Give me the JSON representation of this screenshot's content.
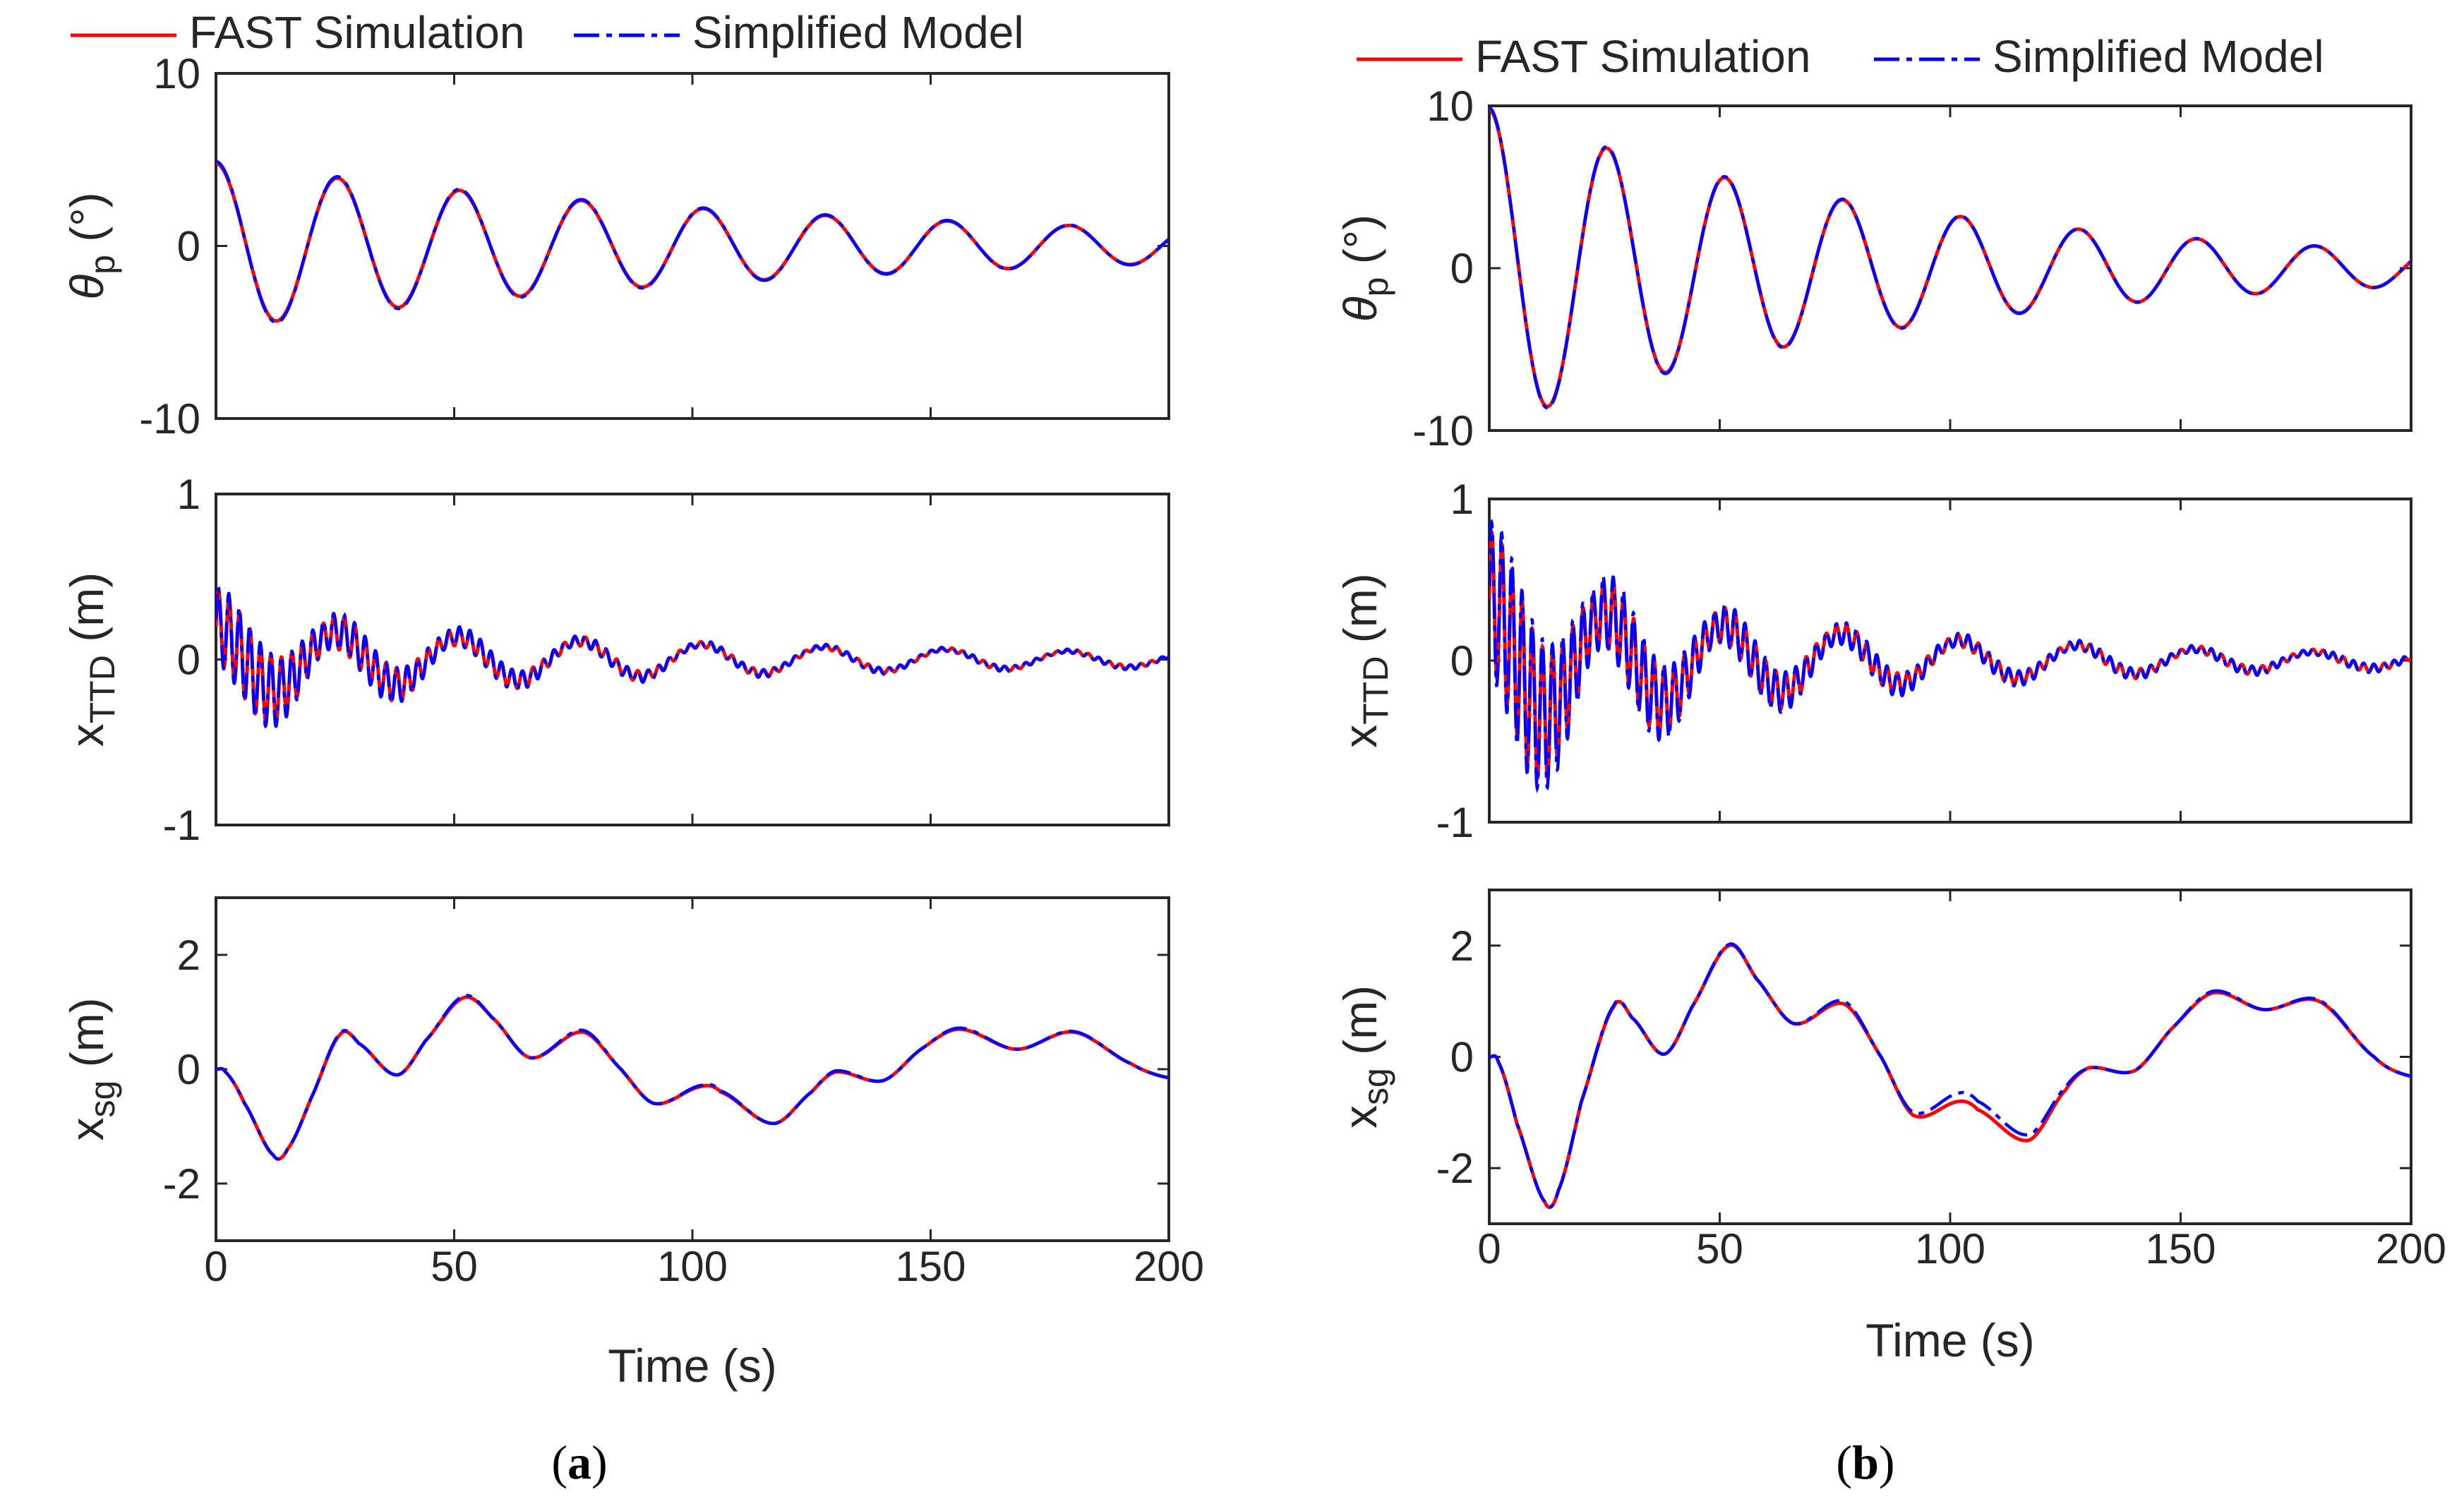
{
  "chart_data": [
    {
      "panel": "(a)",
      "type": "line",
      "legend": [
        "FAST Simulation",
        "Simplified Model"
      ],
      "legend_position": "top",
      "xlabel": "Time (s)",
      "xlim": [
        0,
        200
      ],
      "xticks": [
        "0",
        "50",
        "100",
        "150",
        "200"
      ],
      "subplots": [
        {
          "ylabel": "θ",
          "ylabel_sub": "p",
          "ylabel_unit": " (°)",
          "ylim": [
            -10,
            10
          ],
          "yticks": [
            "-10",
            "0",
            "10"
          ],
          "series": [
            {
              "name": "FAST Simulation",
              "color": "#ff0000",
              "model": {
                "kind": "decay",
                "a0": 4.8,
                "damp": 0.0078,
                "period": 25.6,
                "phase": 1.571,
                "pitch_amp": 0.0
              }
            },
            {
              "name": "Simplified Model",
              "color": "#0000ff",
              "model": {
                "kind": "decay",
                "a0": 4.9,
                "damp": 0.0078,
                "period": 25.6,
                "phase": 1.571,
                "pitch_amp": 0.0
              }
            }
          ]
        },
        {
          "ylabel": "x",
          "ylabel_sub": "TTD",
          "ylabel_unit": " (m)",
          "ylim": [
            -1,
            1
          ],
          "yticks": [
            "-1",
            "0",
            "1"
          ],
          "series": [
            {
              "name": "FAST Simulation",
              "color": "#ff0000",
              "model": {
                "kind": "tower",
                "a0": 0.2,
                "damp": 0.0078,
                "period": 25.6,
                "hf_amp": 0.28,
                "hf_damp": 0.03,
                "hf_period": 2.2,
                "hf_floor": 0.012
              }
            },
            {
              "name": "Simplified Model",
              "color": "#0000ff",
              "model": {
                "kind": "tower",
                "a0": 0.21,
                "damp": 0.0078,
                "period": 25.6,
                "hf_amp": 0.3,
                "hf_damp": 0.03,
                "hf_period": 2.2,
                "hf_floor": 0.014
              }
            }
          ]
        },
        {
          "ylabel": "x",
          "ylabel_sub": "sg",
          "ylabel_unit": " (m)",
          "ylim": [
            -3,
            3
          ],
          "yticks": [
            "-2",
            "0",
            "2"
          ],
          "series": [
            {
              "name": "FAST Simulation",
              "color": "#ff0000",
              "model": {
                "kind": "knots",
                "t": [
                  0,
                  2,
                  6,
                  12,
                  15,
                  20,
                  26,
                  30,
                  38,
                  44,
                  52,
                  58,
                  66,
                  77,
                  85,
                  92,
                  102,
                  106,
                  117,
                  125,
                  130,
                  140,
                  148,
                  156,
                  168,
                  180,
                  192,
                  200
                ],
                "v": [
                  0,
                  -0.05,
                  -0.6,
                  -1.5,
                  -1.4,
                  -0.5,
                  0.6,
                  0.45,
                  -0.1,
                  0.5,
                  1.25,
                  0.9,
                  0.2,
                  0.65,
                  0.0,
                  -0.6,
                  -0.3,
                  -0.4,
                  -0.95,
                  -0.4,
                  -0.05,
                  -0.2,
                  0.35,
                  0.7,
                  0.35,
                  0.65,
                  0.1,
                  -0.15
                ]
              }
            },
            {
              "name": "Simplified Model",
              "color": "#0000ff",
              "model": {
                "kind": "knots",
                "t": [
                  0,
                  2,
                  6,
                  12,
                  15,
                  20,
                  26,
                  30,
                  38,
                  44,
                  52,
                  58,
                  66,
                  77,
                  85,
                  92,
                  102,
                  106,
                  117,
                  125,
                  130,
                  140,
                  148,
                  156,
                  168,
                  180,
                  192,
                  200
                ],
                "v": [
                  0,
                  -0.05,
                  -0.6,
                  -1.5,
                  -1.4,
                  -0.5,
                  0.62,
                  0.45,
                  -0.1,
                  0.5,
                  1.28,
                  0.9,
                  0.2,
                  0.68,
                  0.0,
                  -0.6,
                  -0.28,
                  -0.38,
                  -0.95,
                  -0.4,
                  -0.03,
                  -0.2,
                  0.35,
                  0.72,
                  0.35,
                  0.66,
                  0.1,
                  -0.15
                ]
              }
            }
          ]
        }
      ]
    },
    {
      "panel": "(b)",
      "type": "line",
      "legend": [
        "FAST Simulation",
        "Simplified Model"
      ],
      "legend_position": "top",
      "xlabel": "Time (s)",
      "xlim": [
        0,
        200
      ],
      "xticks": [
        "0",
        "50",
        "100",
        "150",
        "200"
      ],
      "subplots": [
        {
          "ylabel": "θ",
          "ylabel_sub": "p",
          "ylabel_unit": " (°)",
          "ylim": [
            -10,
            10
          ],
          "yticks": [
            "-10",
            "0",
            "10"
          ],
          "series": [
            {
              "name": "FAST Simulation",
              "color": "#ff0000",
              "model": {
                "kind": "decay",
                "a0": 9.8,
                "damp": 0.011,
                "period": 25.6,
                "phase": 1.571,
                "pitch_amp": 0.0
              }
            },
            {
              "name": "Simplified Model",
              "color": "#0000ff",
              "model": {
                "kind": "decay",
                "a0": 9.9,
                "damp": 0.011,
                "period": 25.6,
                "phase": 1.571,
                "pitch_amp": 0.0
              }
            }
          ]
        },
        {
          "ylabel": "x",
          "ylabel_sub": "TTD",
          "ylabel_unit": " (m)",
          "ylim": [
            -1,
            1
          ],
          "yticks": [
            "-1",
            "0",
            "1"
          ],
          "series": [
            {
              "name": "FAST Simulation",
              "color": "#ff0000",
              "model": {
                "kind": "tower",
                "a0": 0.38,
                "damp": 0.011,
                "period": 25.6,
                "hf_amp": 0.55,
                "hf_damp": 0.028,
                "hf_period": 2.2,
                "hf_floor": 0.02
              }
            },
            {
              "name": "Simplified Model",
              "color": "#0000ff",
              "model": {
                "kind": "tower",
                "a0": 0.39,
                "damp": 0.011,
                "period": 25.6,
                "hf_amp": 0.62,
                "hf_damp": 0.028,
                "hf_period": 2.2,
                "hf_floor": 0.024
              }
            }
          ]
        },
        {
          "ylabel": "x",
          "ylabel_sub": "sg",
          "ylabel_unit": " (m)",
          "ylim": [
            -3,
            3
          ],
          "yticks": [
            "-2",
            "0",
            "2"
          ],
          "series": [
            {
              "name": "FAST Simulation",
              "color": "#ff0000",
              "model": {
                "kind": "knots",
                "t": [
                  0,
                  2,
                  6,
                  12,
                  15,
                  20,
                  27,
                  31,
                  38,
                  44,
                  52,
                  58,
                  66,
                  77,
                  85,
                  92,
                  102,
                  106,
                  117,
                  125,
                  130,
                  140,
                  148,
                  157,
                  168,
                  180,
                  192,
                  200
                ],
                "v": [
                  0,
                  -0.1,
                  -1.2,
                  -2.6,
                  -2.4,
                  -0.8,
                  0.9,
                  0.7,
                  0.05,
                  0.9,
                  2.0,
                  1.4,
                  0.6,
                  0.95,
                  0.0,
                  -1.05,
                  -0.8,
                  -0.95,
                  -1.5,
                  -0.6,
                  -0.2,
                  -0.25,
                  0.5,
                  1.15,
                  0.85,
                  1.0,
                  0.0,
                  -0.35
                ]
              }
            },
            {
              "name": "Simplified Model",
              "color": "#0000ff",
              "model": {
                "kind": "knots",
                "t": [
                  0,
                  2,
                  6,
                  12,
                  15,
                  20,
                  27,
                  31,
                  38,
                  44,
                  52,
                  58,
                  66,
                  77,
                  85,
                  92,
                  102,
                  106,
                  117,
                  125,
                  130,
                  140,
                  148,
                  157,
                  168,
                  180,
                  192,
                  200
                ],
                "v": [
                  0,
                  -0.1,
                  -1.2,
                  -2.6,
                  -2.4,
                  -0.8,
                  0.92,
                  0.7,
                  0.05,
                  0.9,
                  2.02,
                  1.4,
                  0.6,
                  1.0,
                  0.0,
                  -1.0,
                  -0.65,
                  -0.8,
                  -1.4,
                  -0.55,
                  -0.2,
                  -0.25,
                  0.5,
                  1.18,
                  0.85,
                  1.02,
                  0.0,
                  -0.35
                ]
              }
            }
          ]
        }
      ]
    }
  ]
}
